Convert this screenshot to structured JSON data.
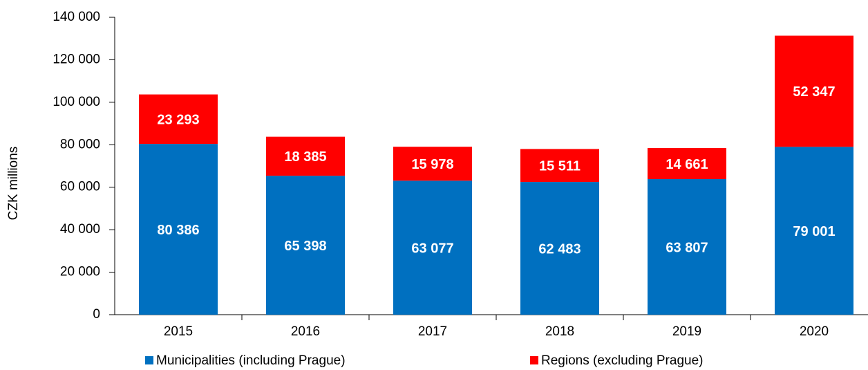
{
  "chart_data": {
    "type": "stacked_bar",
    "y_label": "CZK millions",
    "categories": [
      "2015",
      "2016",
      "2017",
      "2018",
      "2019",
      "2020"
    ],
    "series": [
      {
        "name": "Municipalities (including Prague)",
        "color": "#0070c0",
        "values": [
          80386,
          65398,
          63077,
          62483,
          63807,
          79001
        ],
        "value_labels": [
          "80 386",
          "65 398",
          "63 077",
          "62 483",
          "63 807",
          "79 001"
        ]
      },
      {
        "name": "Regions (excluding Prague)",
        "color": "#ff0000",
        "values": [
          23293,
          18385,
          15978,
          15511,
          14661,
          52347
        ],
        "value_labels": [
          "23 293",
          "18 385",
          "15 978",
          "15 511",
          "14 661",
          "52 347"
        ]
      }
    ],
    "ylim": [
      0,
      140000
    ],
    "yticks": [
      0,
      {
        "value": 20000,
        "label": "20 000"
      },
      {
        "value": 40000,
        "label": "40 000"
      },
      {
        "value": 60000,
        "label": "60 000"
      },
      {
        "value": 80000,
        "label": "80 000"
      },
      {
        "value": 100000,
        "label": "100 000"
      },
      {
        "value": 120000,
        "label": "120 000"
      },
      {
        "value": 140000,
        "label": "140 000"
      }
    ],
    "legend": "bottom"
  }
}
